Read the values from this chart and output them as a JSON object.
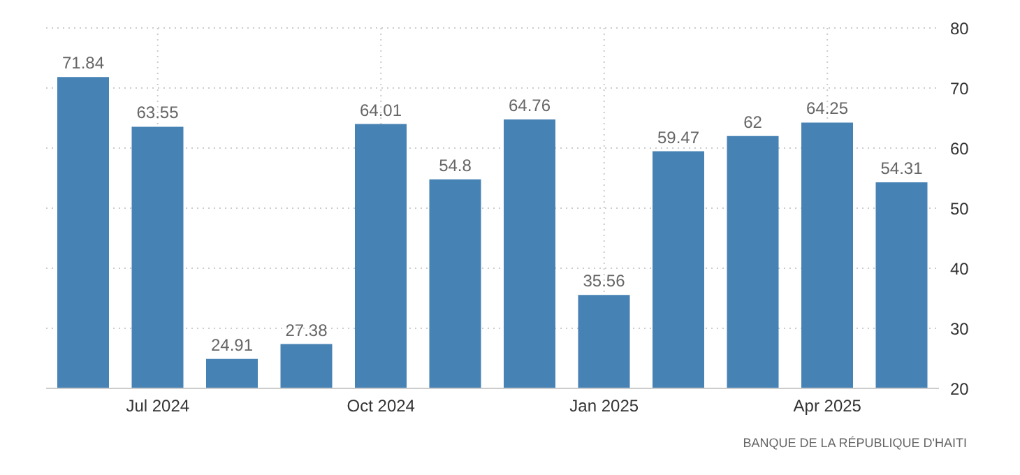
{
  "chart_data": {
    "type": "bar",
    "categories": [
      null,
      "Jul 2024",
      null,
      null,
      "Oct 2024",
      null,
      null,
      "Jan 2025",
      null,
      null,
      "Apr 2025",
      null
    ],
    "values": [
      71.84,
      63.55,
      24.91,
      27.38,
      64.01,
      54.8,
      64.76,
      35.56,
      59.47,
      62,
      64.25,
      54.31
    ],
    "color": "#4682b4",
    "ylim": [
      20,
      80
    ],
    "yticks": [
      20,
      30,
      40,
      50,
      60,
      70,
      80
    ],
    "grid": true,
    "data_labels": true,
    "annotations": [
      "BANQUE DE LA RÉPUBLIQUE D'HAITI"
    ]
  }
}
